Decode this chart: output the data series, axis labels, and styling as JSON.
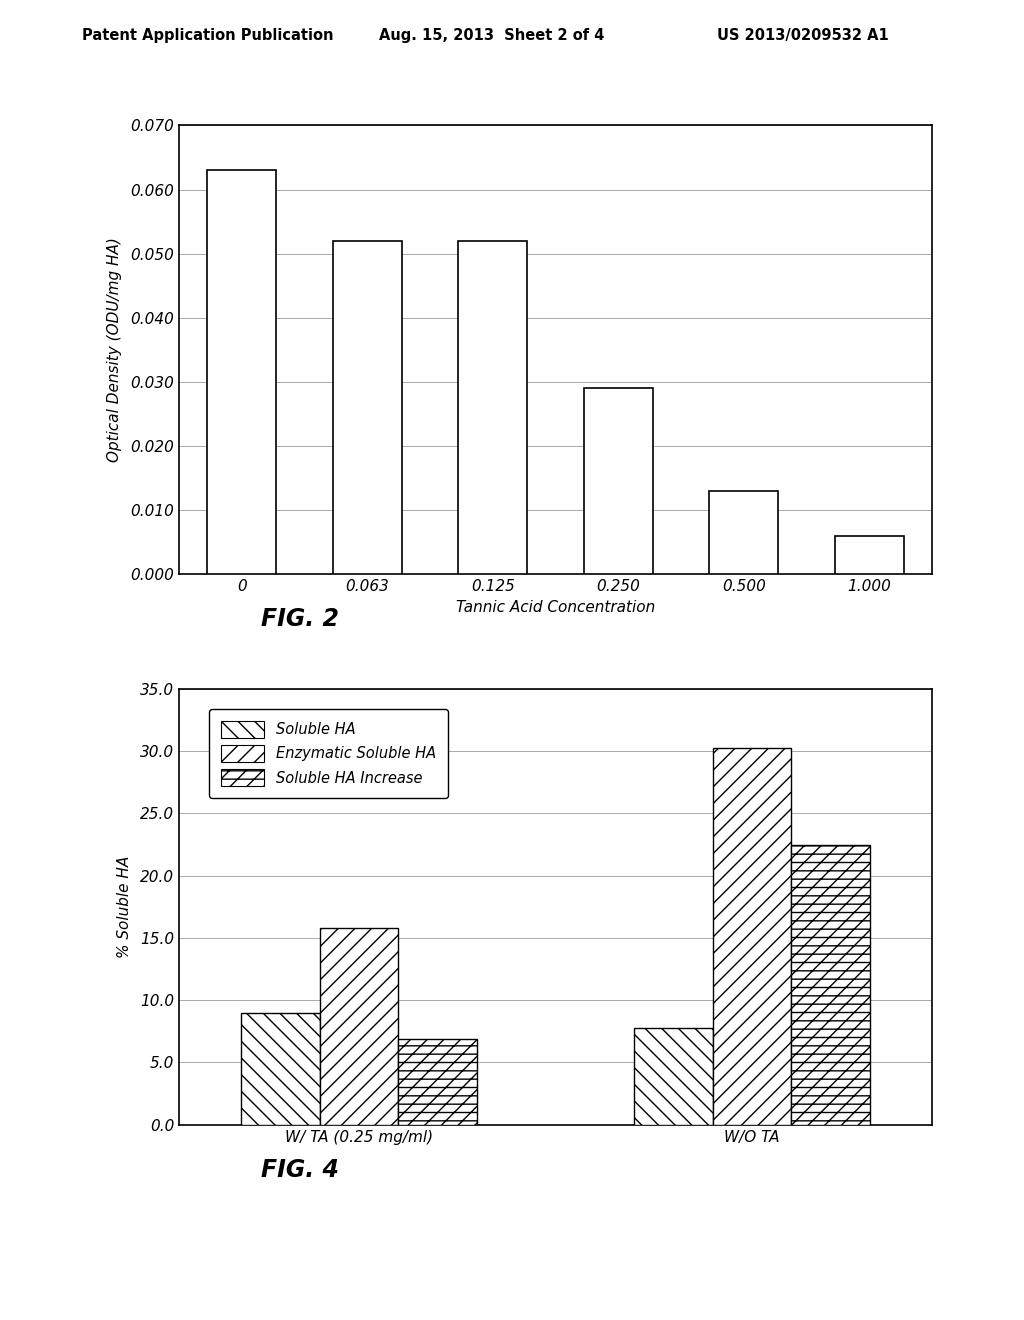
{
  "fig2": {
    "categories": [
      "0",
      "0.063",
      "0.125",
      "0.250",
      "0.500",
      "1.000"
    ],
    "values": [
      0.063,
      0.052,
      0.052,
      0.029,
      0.013,
      0.006
    ],
    "ylabel": "Optical Density (ODU/mg HA)",
    "xlabel": "Tannic Acid Concentration",
    "ylim": [
      0.0,
      0.07
    ],
    "yticks": [
      0.0,
      0.01,
      0.02,
      0.03,
      0.04,
      0.05,
      0.06,
      0.07
    ],
    "fig_label": "FIG. 2"
  },
  "fig4": {
    "groups": [
      "W/ TA (0.25 mg/ml)",
      "W/O TA"
    ],
    "series": [
      "Soluble HA",
      "Enzymatic Soluble HA",
      "Soluble HA Increase"
    ],
    "values": [
      [
        9.0,
        15.8,
        6.9
      ],
      [
        7.8,
        30.3,
        22.5
      ]
    ],
    "ylabel": "% Soluble HA",
    "ylim": [
      0.0,
      35.0
    ],
    "yticks": [
      0.0,
      5.0,
      10.0,
      15.0,
      20.0,
      25.0,
      30.0,
      35.0
    ],
    "hatch_patterns": [
      "\\\\",
      "////",
      "\\\\\\\\//"
    ],
    "fig_label": "FIG. 4"
  },
  "header_left": "Patent Application Publication",
  "header_center": "Aug. 15, 2013  Sheet 2 of 4",
  "header_right": "US 2013/0209532 A1",
  "background_color": "#ffffff",
  "text_color": "#000000",
  "bar_color": "#ffffff",
  "bar_edge_color": "#000000"
}
